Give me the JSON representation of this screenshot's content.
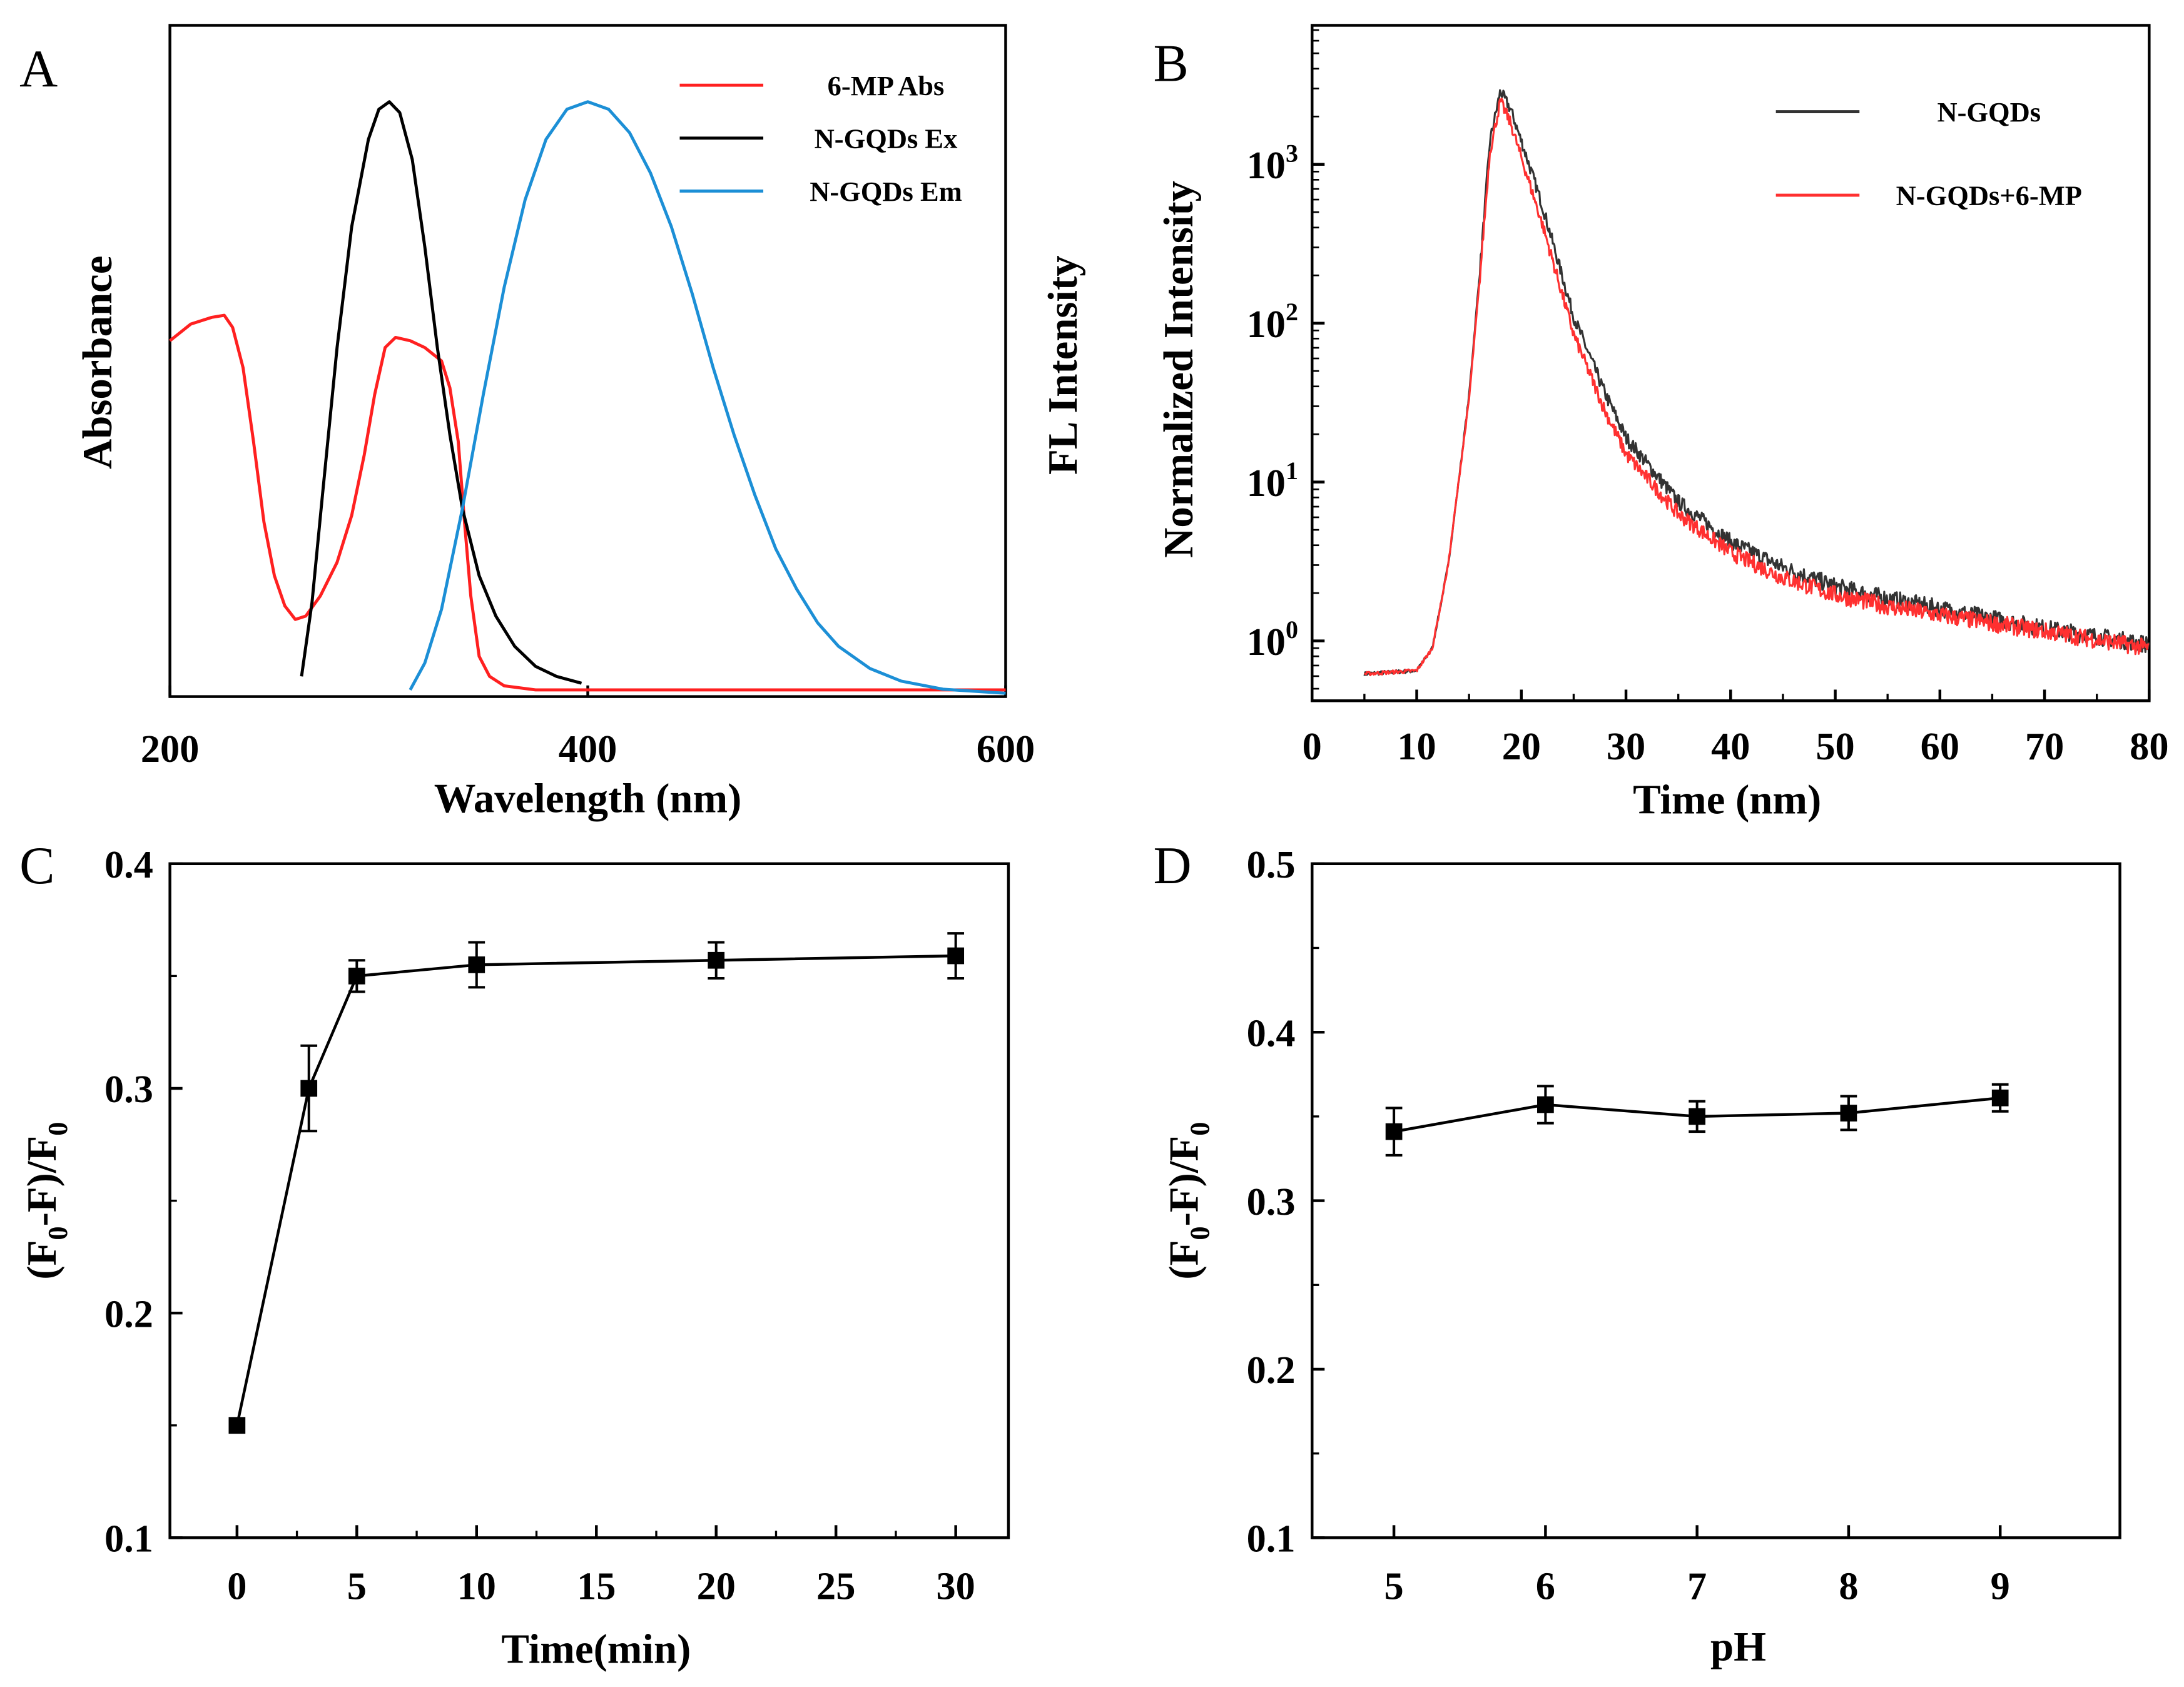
{
  "chart_data": [
    {
      "panel": "A",
      "type": "line",
      "xlabel": "Wavelength (nm)",
      "ylabel": "Absorbance",
      "ylabel_right": "FL Intensity",
      "xlim": [
        200,
        600
      ],
      "ylim": [
        0,
        1
      ],
      "xticks": [
        200,
        400,
        600
      ],
      "legend_position": "top-right",
      "series": [
        {
          "name": "6-MP Abs",
          "color": "#ff2020",
          "points": [
            [
              200,
              0.53
            ],
            [
              210,
              0.555
            ],
            [
              220,
              0.565
            ],
            [
              226,
              0.568
            ],
            [
              230,
              0.55
            ],
            [
              235,
              0.49
            ],
            [
              240,
              0.38
            ],
            [
              245,
              0.26
            ],
            [
              250,
              0.18
            ],
            [
              255,
              0.135
            ],
            [
              260,
              0.115
            ],
            [
              265,
              0.12
            ],
            [
              272,
              0.15
            ],
            [
              280,
              0.2
            ],
            [
              287,
              0.27
            ],
            [
              293,
              0.36
            ],
            [
              298,
              0.45
            ],
            [
              303,
              0.52
            ],
            [
              308,
              0.535
            ],
            [
              315,
              0.53
            ],
            [
              322,
              0.52
            ],
            [
              330,
              0.5
            ],
            [
              334,
              0.46
            ],
            [
              338,
              0.38
            ],
            [
              341,
              0.26
            ],
            [
              344,
              0.15
            ],
            [
              348,
              0.06
            ],
            [
              353,
              0.03
            ],
            [
              360,
              0.016
            ],
            [
              375,
              0.01
            ],
            [
              600,
              0.01
            ]
          ]
        },
        {
          "name": "N-GQDs Ex",
          "color": "#000000",
          "points": [
            [
              263,
              0.03
            ],
            [
              268,
              0.14
            ],
            [
              273,
              0.3
            ],
            [
              280,
              0.52
            ],
            [
              287,
              0.7
            ],
            [
              295,
              0.83
            ],
            [
              300,
              0.875
            ],
            [
              305,
              0.886
            ],
            [
              310,
              0.87
            ],
            [
              316,
              0.8
            ],
            [
              322,
              0.67
            ],
            [
              328,
              0.52
            ],
            [
              334,
              0.39
            ],
            [
              340,
              0.28
            ],
            [
              348,
              0.18
            ],
            [
              356,
              0.12
            ],
            [
              365,
              0.075
            ],
            [
              375,
              0.045
            ],
            [
              385,
              0.03
            ],
            [
              397,
              0.02
            ]
          ]
        },
        {
          "name": "N-GQDs Em",
          "color": "#1c8fd6",
          "points": [
            [
              315,
              0.01
            ],
            [
              322,
              0.05
            ],
            [
              330,
              0.13
            ],
            [
              340,
              0.28
            ],
            [
              350,
              0.45
            ],
            [
              360,
              0.61
            ],
            [
              370,
              0.74
            ],
            [
              380,
              0.83
            ],
            [
              390,
              0.875
            ],
            [
              400,
              0.886
            ],
            [
              410,
              0.875
            ],
            [
              420,
              0.84
            ],
            [
              430,
              0.78
            ],
            [
              440,
              0.7
            ],
            [
              450,
              0.6
            ],
            [
              460,
              0.49
            ],
            [
              470,
              0.39
            ],
            [
              480,
              0.3
            ],
            [
              490,
              0.22
            ],
            [
              500,
              0.16
            ],
            [
              510,
              0.11
            ],
            [
              520,
              0.075
            ],
            [
              535,
              0.042
            ],
            [
              550,
              0.023
            ],
            [
              570,
              0.011
            ],
            [
              600,
              0.005
            ]
          ]
        }
      ]
    },
    {
      "panel": "B",
      "type": "line",
      "xlabel": "Time (nm)",
      "ylabel": "Normalized Intensity",
      "yscale": "log",
      "xlim": [
        0,
        80
      ],
      "ylim": [
        0.42,
        7500
      ],
      "xticks": [
        0,
        10,
        20,
        30,
        40,
        50,
        60,
        70,
        80
      ],
      "yticks": [
        {
          "base": "10",
          "exp": "0"
        },
        {
          "base": "10",
          "exp": "1"
        },
        {
          "base": "10",
          "exp": "2"
        },
        {
          "base": "10",
          "exp": "3"
        }
      ],
      "legend_position": "top-right",
      "series": [
        {
          "name": "N-GQDs",
          "color": "#333333",
          "points": [
            [
              5,
              0.62
            ],
            [
              10,
              0.65
            ],
            [
              11.5,
              0.9
            ],
            [
              13,
              3
            ],
            [
              14,
              10
            ],
            [
              15,
              35
            ],
            [
              16,
              200
            ],
            [
              17,
              1400
            ],
            [
              18,
              2900
            ],
            [
              19,
              2200
            ],
            [
              20,
              1400
            ],
            [
              22,
              550
            ],
            [
              25,
              110
            ],
            [
              28,
              36
            ],
            [
              30,
              19
            ],
            [
              35,
              7.5
            ],
            [
              40,
              4.2
            ],
            [
              45,
              2.9
            ],
            [
              50,
              2.2
            ],
            [
              55,
              1.85
            ],
            [
              60,
              1.6
            ],
            [
              70,
              1.2
            ],
            [
              80,
              0.95
            ]
          ]
        },
        {
          "name": "N-GQDs+6-MP",
          "color": "#ff3030",
          "points": [
            [
              5,
              0.62
            ],
            [
              10,
              0.65
            ],
            [
              11.5,
              0.9
            ],
            [
              13,
              3
            ],
            [
              14,
              10
            ],
            [
              15,
              33
            ],
            [
              16,
              180
            ],
            [
              17,
              1200
            ],
            [
              18,
              2500
            ],
            [
              19,
              1800
            ],
            [
              20,
              1100
            ],
            [
              22,
              420
            ],
            [
              25,
              85
            ],
            [
              28,
              28
            ],
            [
              30,
              15
            ],
            [
              35,
              6.3
            ],
            [
              40,
              3.6
            ],
            [
              45,
              2.5
            ],
            [
              50,
              1.95
            ],
            [
              55,
              1.65
            ],
            [
              60,
              1.45
            ],
            [
              70,
              1.15
            ],
            [
              80,
              0.9
            ]
          ]
        }
      ]
    },
    {
      "panel": "C",
      "type": "line",
      "xlabel": "Time(min)",
      "ylabel": {
        "pre": "(F",
        "sub1": "0",
        "mid": "-F)/F",
        "sub2": "0"
      },
      "xlim": [
        -2.8,
        32.2
      ],
      "ylim": [
        0.1,
        0.4
      ],
      "xticks": [
        0,
        5,
        10,
        15,
        20,
        25,
        30
      ],
      "yticks": [
        "0.1",
        "0.2",
        "0.3",
        "0.4"
      ],
      "x": [
        0,
        3,
        5,
        10,
        20,
        30
      ],
      "values": [
        0.15,
        0.3,
        0.35,
        0.355,
        0.357,
        0.359
      ],
      "errors": [
        0,
        0.019,
        0.007,
        0.01,
        0.008,
        0.01
      ]
    },
    {
      "panel": "D",
      "type": "line",
      "xlabel": "pH",
      "ylabel": {
        "pre": "(F",
        "sub1": "0",
        "mid": "-F)/F",
        "sub2": "0"
      },
      "xlim": [
        4.46,
        9.79
      ],
      "ylim": [
        0.1,
        0.5
      ],
      "xticks": [
        5,
        6,
        7,
        8,
        9
      ],
      "yticks": [
        "0.1",
        "0.2",
        "0.3",
        "0.4",
        "0.5"
      ],
      "x": [
        5,
        6,
        7,
        8,
        9
      ],
      "values": [
        0.341,
        0.357,
        0.35,
        0.352,
        0.361
      ],
      "errors": [
        0.014,
        0.011,
        0.009,
        0.01,
        0.008
      ]
    }
  ],
  "panel_labels": [
    "A",
    "B",
    "C",
    "D"
  ]
}
